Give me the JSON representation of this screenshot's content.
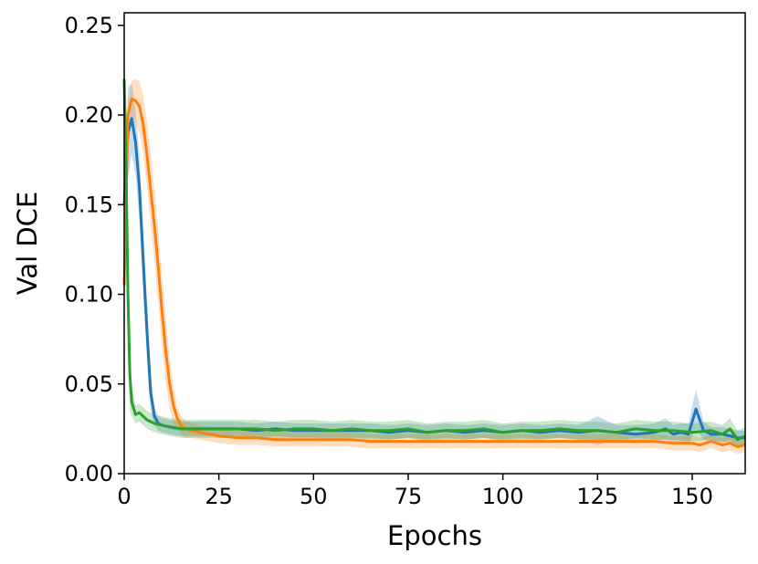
{
  "chart_data": {
    "type": "line",
    "xlabel": "Epochs",
    "ylabel": "Val DCE",
    "xlim": [
      0,
      164
    ],
    "ylim": [
      0,
      0.257
    ],
    "xticks": [
      0,
      25,
      50,
      75,
      100,
      125,
      150
    ],
    "xtick_labels": [
      "0",
      "25",
      "50",
      "75",
      "100",
      "125",
      "150"
    ],
    "yticks": [
      0,
      0.05,
      0.1,
      0.15,
      0.2,
      0.25
    ],
    "ytick_labels": [
      "0.00",
      "0.05",
      "0.10",
      "0.15",
      "0.20",
      "0.25"
    ],
    "grid": false,
    "legend": "none",
    "series": [
      {
        "color": "#1f77b4",
        "x": [
          0,
          1,
          2,
          3,
          4,
          5,
          6,
          7,
          8,
          9,
          10,
          12,
          15,
          20,
          25,
          30,
          35,
          40,
          45,
          50,
          55,
          60,
          65,
          70,
          75,
          80,
          85,
          90,
          95,
          100,
          105,
          110,
          115,
          120,
          125,
          130,
          135,
          140,
          143,
          145,
          147,
          149,
          151,
          152,
          153,
          155,
          158,
          160,
          162,
          164
        ],
        "values": [
          0.15,
          0.19,
          0.198,
          0.185,
          0.16,
          0.12,
          0.08,
          0.045,
          0.032,
          0.028,
          0.027,
          0.026,
          0.025,
          0.025,
          0.025,
          0.025,
          0.024,
          0.025,
          0.024,
          0.024,
          0.024,
          0.024,
          0.024,
          0.023,
          0.024,
          0.023,
          0.024,
          0.023,
          0.024,
          0.023,
          0.024,
          0.023,
          0.024,
          0.023,
          0.024,
          0.023,
          0.022,
          0.023,
          0.025,
          0.022,
          0.023,
          0.022,
          0.036,
          0.03,
          0.024,
          0.022,
          0.022,
          0.021,
          0.02,
          0.02
        ],
        "band": [
          0.006,
          0.025,
          0.02,
          0.018,
          0.018,
          0.018,
          0.016,
          0.01,
          0.005,
          0.004,
          0.004,
          0.004,
          0.004,
          0.004,
          0.004,
          0.004,
          0.004,
          0.004,
          0.004,
          0.004,
          0.004,
          0.004,
          0.004,
          0.004,
          0.004,
          0.004,
          0.004,
          0.004,
          0.004,
          0.004,
          0.004,
          0.004,
          0.004,
          0.004,
          0.008,
          0.004,
          0.005,
          0.005,
          0.006,
          0.005,
          0.005,
          0.006,
          0.011,
          0.008,
          0.005,
          0.004,
          0.004,
          0.004,
          0.004,
          0.004
        ]
      },
      {
        "color": "#ff7f0e",
        "x": [
          0,
          1,
          2,
          3,
          4,
          5,
          6,
          7,
          8,
          9,
          10,
          11,
          12,
          13,
          14,
          15,
          16,
          18,
          20,
          25,
          30,
          35,
          40,
          45,
          50,
          55,
          60,
          65,
          70,
          75,
          80,
          85,
          90,
          95,
          100,
          105,
          110,
          115,
          120,
          125,
          130,
          135,
          140,
          145,
          150,
          152,
          155,
          158,
          160,
          162,
          164
        ],
        "values": [
          0.105,
          0.2,
          0.209,
          0.208,
          0.205,
          0.195,
          0.178,
          0.158,
          0.138,
          0.115,
          0.09,
          0.068,
          0.05,
          0.038,
          0.031,
          0.027,
          0.025,
          0.024,
          0.023,
          0.021,
          0.02,
          0.02,
          0.019,
          0.019,
          0.019,
          0.019,
          0.019,
          0.018,
          0.018,
          0.018,
          0.018,
          0.018,
          0.018,
          0.018,
          0.018,
          0.018,
          0.018,
          0.018,
          0.018,
          0.018,
          0.018,
          0.018,
          0.018,
          0.017,
          0.017,
          0.016,
          0.018,
          0.016,
          0.017,
          0.015,
          0.016
        ],
        "band": [
          0.006,
          0.008,
          0.01,
          0.012,
          0.014,
          0.016,
          0.018,
          0.02,
          0.02,
          0.02,
          0.02,
          0.018,
          0.014,
          0.01,
          0.006,
          0.005,
          0.005,
          0.004,
          0.004,
          0.004,
          0.004,
          0.004,
          0.004,
          0.004,
          0.004,
          0.004,
          0.004,
          0.004,
          0.004,
          0.004,
          0.004,
          0.004,
          0.004,
          0.004,
          0.004,
          0.004,
          0.004,
          0.004,
          0.004,
          0.004,
          0.004,
          0.004,
          0.004,
          0.004,
          0.004,
          0.004,
          0.004,
          0.004,
          0.004,
          0.004,
          0.004
        ]
      },
      {
        "color": "#2ca02c",
        "x": [
          0,
          0.5,
          1,
          1.5,
          2,
          3,
          4,
          5,
          6,
          8,
          10,
          12,
          15,
          20,
          25,
          30,
          35,
          40,
          45,
          50,
          55,
          60,
          65,
          70,
          75,
          80,
          85,
          90,
          95,
          100,
          105,
          110,
          115,
          120,
          125,
          130,
          135,
          140,
          145,
          150,
          155,
          158,
          160,
          162,
          164
        ],
        "values": [
          0.22,
          0.17,
          0.1,
          0.055,
          0.04,
          0.033,
          0.034,
          0.032,
          0.03,
          0.028,
          0.027,
          0.026,
          0.025,
          0.025,
          0.025,
          0.025,
          0.025,
          0.024,
          0.025,
          0.025,
          0.024,
          0.025,
          0.024,
          0.024,
          0.025,
          0.023,
          0.024,
          0.024,
          0.025,
          0.023,
          0.024,
          0.024,
          0.025,
          0.024,
          0.024,
          0.023,
          0.025,
          0.024,
          0.024,
          0.023,
          0.024,
          0.022,
          0.025,
          0.019,
          0.021
        ],
        "band": [
          0.01,
          0.04,
          0.04,
          0.02,
          0.008,
          0.005,
          0.005,
          0.005,
          0.005,
          0.005,
          0.005,
          0.005,
          0.005,
          0.005,
          0.005,
          0.005,
          0.005,
          0.005,
          0.005,
          0.005,
          0.005,
          0.005,
          0.005,
          0.005,
          0.005,
          0.005,
          0.005,
          0.005,
          0.005,
          0.005,
          0.005,
          0.005,
          0.005,
          0.005,
          0.005,
          0.005,
          0.005,
          0.005,
          0.005,
          0.005,
          0.005,
          0.005,
          0.006,
          0.005,
          0.005
        ]
      }
    ]
  }
}
